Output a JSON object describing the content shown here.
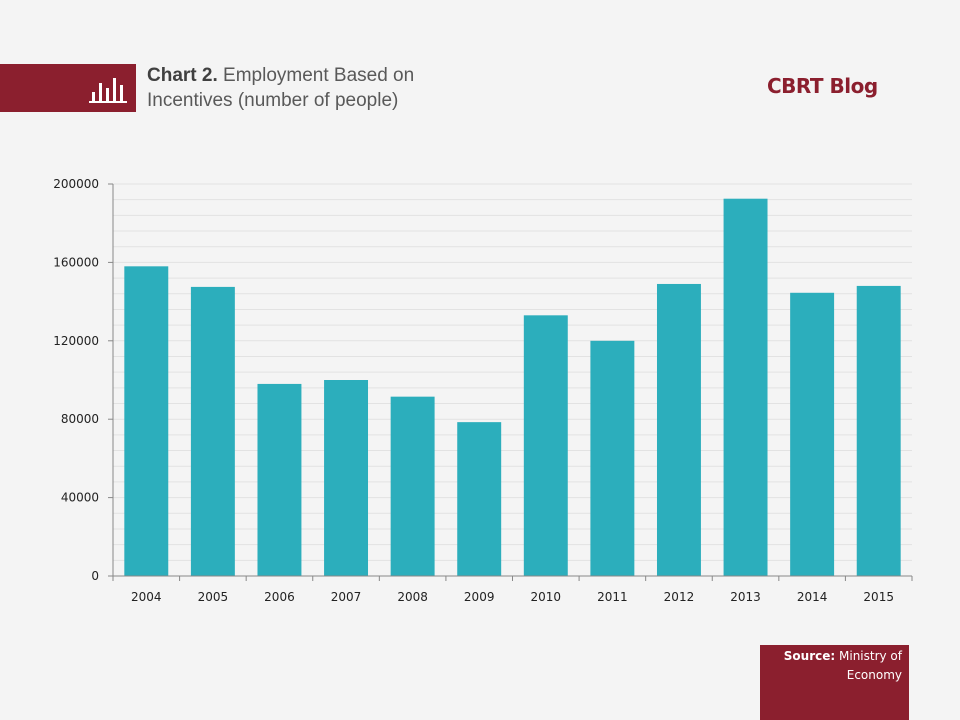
{
  "header": {
    "title_bold": "Chart 2.",
    "title_line1": "Employment Based  on",
    "title_line2": "Incentives  (number of people)",
    "brand": "CBRT Blog",
    "icon": "bar-chart-icon"
  },
  "source": {
    "label": "Source:",
    "text_line1": "Ministry of",
    "text_line2": "Economy"
  },
  "colors": {
    "brand": "#8b1f2e",
    "bar": "#2caebc",
    "background": "#f4f4f4"
  },
  "chart_data": {
    "type": "bar",
    "title": "Chart 2. Employment Based on Incentives (number of people)",
    "xlabel": "",
    "ylabel": "",
    "categories": [
      "2004",
      "2005",
      "2006",
      "2007",
      "2008",
      "2009",
      "2010",
      "2011",
      "2012",
      "2013",
      "2014",
      "2015"
    ],
    "values": [
      158000,
      147500,
      98000,
      100000,
      91500,
      78500,
      133000,
      120000,
      149000,
      192500,
      144500,
      148000
    ],
    "ylim": [
      0,
      200000
    ],
    "yticks": [
      0,
      40000,
      80000,
      120000,
      160000,
      200000
    ],
    "minor_grid_step": 8000,
    "grid": true,
    "legend": "none"
  }
}
